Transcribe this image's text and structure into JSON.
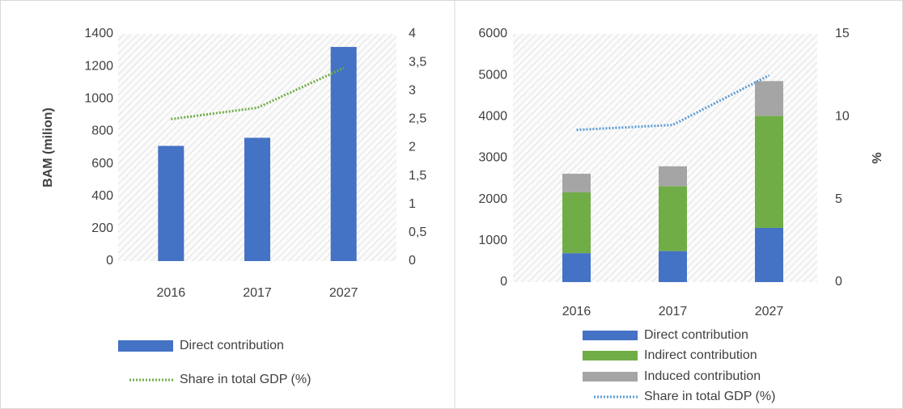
{
  "chart_data": [
    {
      "type": "bar",
      "ylabel": "BAM (milion)",
      "categories": [
        "2016",
        "2017",
        "2027"
      ],
      "series": [
        {
          "name": "Direct contribution",
          "color": "#4472c4",
          "values": [
            710,
            760,
            1320
          ]
        },
        {
          "name": "Share in total GDP (%)",
          "color": "#70ad47",
          "type": "line",
          "axis": "y2",
          "values": [
            2.5,
            2.7,
            3.4
          ]
        }
      ],
      "ylim": [
        0,
        1400
      ],
      "yticks": [
        0,
        200,
        400,
        600,
        800,
        1000,
        1200,
        1400
      ],
      "y2lim": [
        0,
        4
      ],
      "y2ticks": [
        0,
        {
          "value": 0.5,
          "label": "0,5"
        },
        1,
        {
          "value": 1.5,
          "label": "1,5"
        },
        2,
        {
          "value": 2.5,
          "label": "2,5"
        },
        3,
        {
          "value": 3.5,
          "label": "3,5"
        },
        4
      ]
    },
    {
      "type": "bar",
      "stacked": true,
      "y2label": "%",
      "categories": [
        "2016",
        "2017",
        "2027"
      ],
      "series": [
        {
          "name": "Direct contribution",
          "color": "#4472c4",
          "values": [
            700,
            750,
            1310
          ]
        },
        {
          "name": "Indirect contribution",
          "color": "#70ad47",
          "values": [
            1470,
            1570,
            2710
          ]
        },
        {
          "name": "Induced contribution",
          "color": "#a5a5a5",
          "values": [
            450,
            480,
            840
          ]
        },
        {
          "name": "Share in total GDP (%)",
          "color": "#5b9bd5",
          "type": "line",
          "axis": "y2",
          "values": [
            9.2,
            9.5,
            12.5
          ]
        }
      ],
      "ylim": [
        0,
        6000
      ],
      "yticks": [
        0,
        1000,
        2000,
        3000,
        4000,
        5000,
        6000
      ],
      "y2lim": [
        0,
        15
      ],
      "y2ticks": [
        0,
        5,
        10,
        15
      ]
    }
  ]
}
